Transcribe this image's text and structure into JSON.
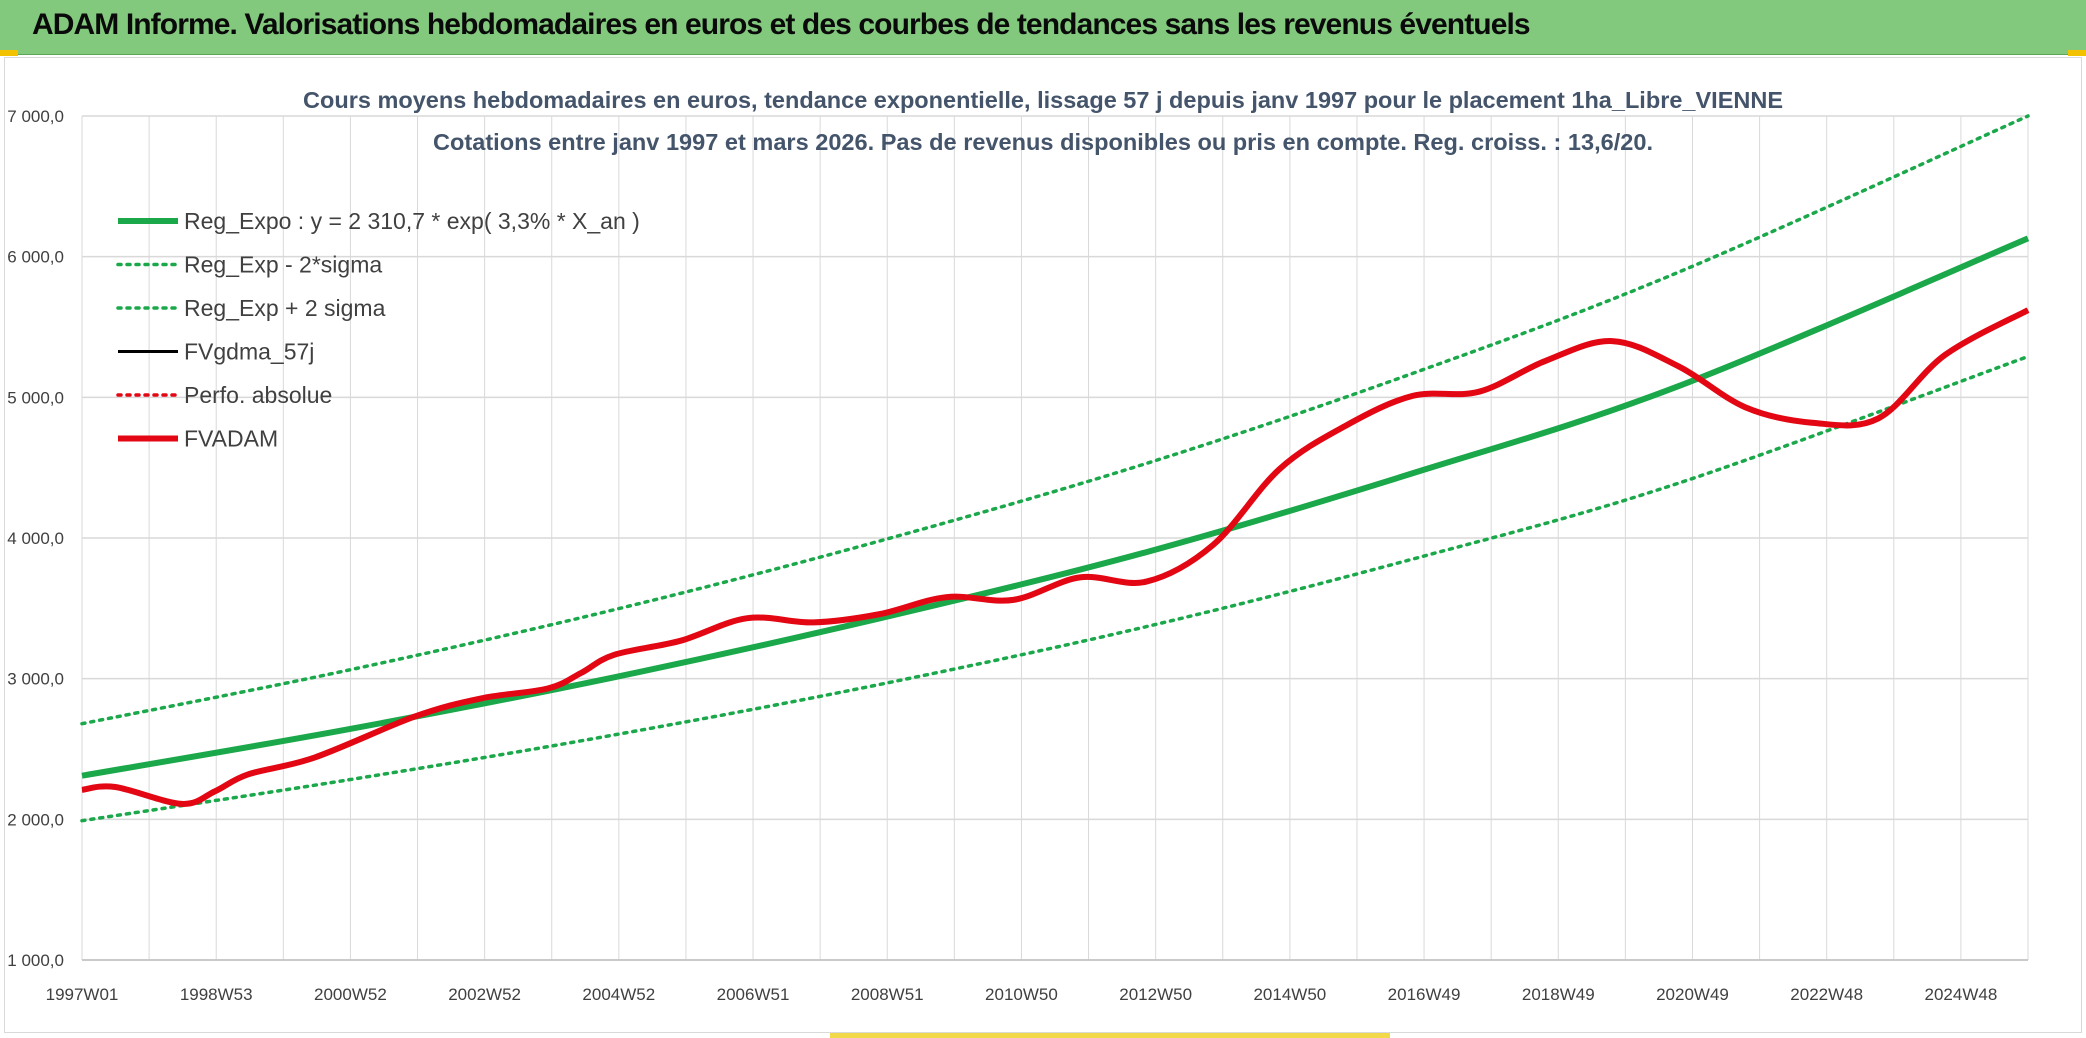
{
  "header": {
    "title": "ADAM Informe. Valorisations hebdomadaires en euros et des courbes de tendances sans les revenus éventuels"
  },
  "colors": {
    "header_bg": "#82c87d",
    "trend": "#1aa84a",
    "series_red": "#e30613",
    "series_black": "#000000",
    "grid": "#d9d9d9",
    "text": "#404040",
    "title_text": "#44546a"
  },
  "chart_data": {
    "type": "line",
    "title": "Cours moyens hebdomadaires en euros, tendance exponentielle, lissage 57 j depuis janv 1997 pour le placement 1ha_Libre_VIENNE",
    "subtitle": "Cotations entre janv 1997 et mars 2026. Pas de revenus disponibles ou pris en compte. Reg. croiss. : 13,6/20.",
    "xlabel": "",
    "ylabel": "",
    "ylim": [
      1000,
      7000
    ],
    "yticks": [
      "1 000,0",
      "2 000,0",
      "3 000,0",
      "4 000,0",
      "5 000,0",
      "6 000,0",
      "7 000,0"
    ],
    "xticks": [
      "1997W01",
      "1998W53",
      "2000W52",
      "2002W52",
      "2004W52",
      "2006W51",
      "2008W51",
      "2010W50",
      "2012W50",
      "2014W50",
      "2016W49",
      "2018W49",
      "2020W49",
      "2022W48",
      "2024W48"
    ],
    "xlim": [
      0,
      29.25
    ],
    "x_unit": "years since 1997W01",
    "grid": true,
    "legend_position": "top-left",
    "legend": [
      "Reg_Expo : y = 2 310,7 * exp( 3,3% *  X_an )",
      "Reg_Exp - 2*sigma",
      "Reg_Exp + 2 sigma",
      "FVgdma_57j",
      "Perfo. absolue",
      "FVADAM"
    ],
    "series": [
      {
        "name": "Reg_Expo : y = 2 310,7 * exp( 3,3% *  X_an )",
        "style": "solid-thick",
        "color": "#1aa84a",
        "x": [
          0,
          4,
          8,
          12,
          16,
          20,
          24,
          29.25
        ],
        "values": [
          2310,
          2640,
          3010,
          3430,
          3900,
          4460,
          5080,
          6130
        ]
      },
      {
        "name": "Reg_Exp - 2*sigma",
        "style": "dotted",
        "color": "#1aa84a",
        "x": [
          0,
          4,
          8,
          12,
          16,
          20,
          24,
          29.25
        ],
        "values": [
          1990,
          2280,
          2600,
          2960,
          3370,
          3850,
          4390,
          5290
        ]
      },
      {
        "name": "Reg_Exp + 2 sigma",
        "style": "dotted",
        "color": "#1aa84a",
        "x": [
          0,
          4,
          8,
          12,
          16,
          20,
          24,
          29.25
        ],
        "values": [
          2680,
          3060,
          3490,
          3980,
          4530,
          5170,
          5890,
          7000
        ]
      },
      {
        "name": "FVgdma_57j",
        "style": "solid",
        "color": "#000000",
        "x": [
          0,
          0.5,
          1.5,
          2,
          2.5,
          3.5,
          5,
          6,
          7,
          7.5,
          8,
          9,
          10,
          11,
          12,
          13,
          14,
          15,
          16,
          17,
          18,
          19,
          20,
          21,
          22,
          23,
          24,
          25,
          26,
          27,
          28,
          29.25
        ],
        "values": [
          2210,
          2230,
          2110,
          2200,
          2320,
          2440,
          2730,
          2860,
          2930,
          3040,
          3170,
          3270,
          3430,
          3400,
          3460,
          3580,
          3560,
          3720,
          3690,
          3950,
          4490,
          4800,
          5010,
          5040,
          5260,
          5400,
          5220,
          4930,
          4820,
          4850,
          5300,
          5620
        ]
      },
      {
        "name": "Perfo. absolue",
        "style": "dotted",
        "color": "#e30613",
        "x": [],
        "values": []
      },
      {
        "name": "FVADAM",
        "style": "solid-thick",
        "color": "#e30613",
        "x": [
          0,
          0.5,
          1.5,
          2,
          2.5,
          3.5,
          5,
          6,
          7,
          7.5,
          8,
          9,
          10,
          11,
          12,
          13,
          14,
          15,
          16,
          17,
          18,
          19,
          20,
          21,
          22,
          23,
          24,
          25,
          26,
          27,
          28,
          29.25
        ],
        "values": [
          2210,
          2230,
          2110,
          2200,
          2320,
          2440,
          2730,
          2860,
          2930,
          3040,
          3170,
          3270,
          3430,
          3400,
          3460,
          3580,
          3560,
          3720,
          3690,
          3950,
          4490,
          4800,
          5010,
          5040,
          5260,
          5400,
          5220,
          4930,
          4820,
          4850,
          5300,
          5620
        ]
      }
    ]
  }
}
